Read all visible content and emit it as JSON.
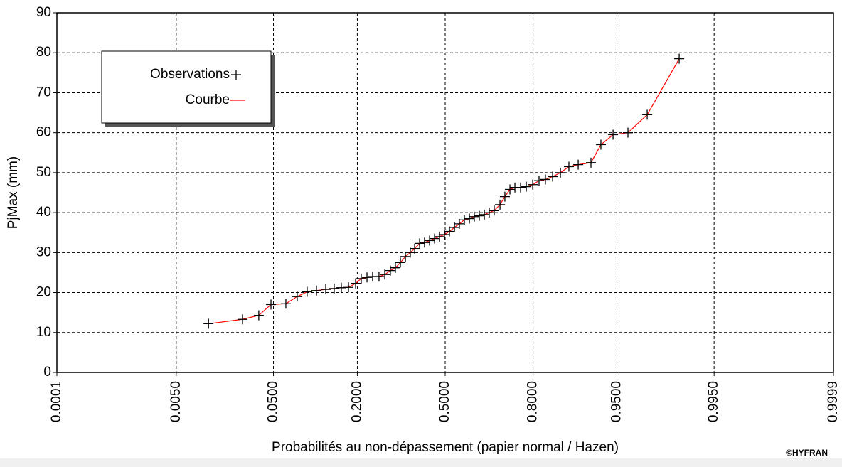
{
  "chart_data": {
    "type": "probability",
    "xscale": "normal",
    "xlabel": "Probabilités au non-dépassement (papier normal / Hazen)",
    "ylabel": "PjMax (mm)",
    "credit": "©HYFRAN",
    "xlim": [
      0.0001,
      0.9999
    ],
    "xticks": [
      {
        "value": 0.0001,
        "label": "0.0001"
      },
      {
        "value": 0.005,
        "label": "0.0050"
      },
      {
        "value": 0.05,
        "label": "0.0500"
      },
      {
        "value": 0.2,
        "label": "0.2000"
      },
      {
        "value": 0.5,
        "label": "0.5000"
      },
      {
        "value": 0.8,
        "label": "0.8000"
      },
      {
        "value": 0.95,
        "label": "0.9500"
      },
      {
        "value": 0.995,
        "label": "0.9950"
      },
      {
        "value": 0.9999,
        "label": "0.9999"
      }
    ],
    "ylim": [
      0,
      90
    ],
    "yticks": [
      0,
      10,
      20,
      30,
      40,
      50,
      60,
      70,
      80,
      90
    ],
    "grid": true,
    "x": [
      0.0117,
      0.0261,
      0.0371,
      0.0476,
      0.0635,
      0.0782,
      0.0931,
      0.1088,
      0.1263,
      0.1439,
      0.1599,
      0.1772,
      0.1954,
      0.2107,
      0.2269,
      0.2435,
      0.2631,
      0.2813,
      0.2998,
      0.3167,
      0.334,
      0.3516,
      0.3692,
      0.3848,
      0.4032,
      0.4215,
      0.4404,
      0.4594,
      0.4785,
      0.4972,
      0.5164,
      0.5355,
      0.5541,
      0.573,
      0.5917,
      0.6099,
      0.6282,
      0.6462,
      0.6635,
      0.6808,
      0.7002,
      0.7163,
      0.7324,
      0.7479,
      0.7649,
      0.7814,
      0.799,
      0.8157,
      0.8315,
      0.8482,
      0.8652,
      0.882,
      0.8987,
      0.9187,
      0.9321,
      0.9461,
      0.96,
      0.9735,
      0.9875
    ],
    "series": [
      {
        "name": "Observations",
        "color": "#000000",
        "marker": "+",
        "values": [
          12.2,
          13.3,
          14.3,
          17,
          17.2,
          19,
          20.2,
          20.5,
          20.8,
          21,
          21.2,
          21.3,
          22.3,
          23.5,
          23.8,
          24,
          24,
          24.5,
          25.5,
          26.2,
          27.5,
          29,
          30,
          31,
          32.3,
          32.5,
          33,
          33.5,
          34,
          34.5,
          35.3,
          36.3,
          37.2,
          38.2,
          38.5,
          39,
          39.2,
          39.5,
          40,
          40.5,
          42,
          44,
          45.8,
          46.3,
          46.3,
          46.5,
          47,
          48,
          48.3,
          49,
          50,
          51.5,
          52,
          52.5,
          57,
          59.5,
          60,
          64.5,
          78.5
        ]
      },
      {
        "name": "Courbe",
        "color": "#ff0000",
        "marker": "line",
        "values": [
          12.2,
          13.3,
          14.3,
          17,
          17.2,
          19,
          20.2,
          20.5,
          20.8,
          21,
          21.2,
          21.3,
          22.3,
          23.5,
          23.8,
          24,
          24,
          24.5,
          25.5,
          26.2,
          27.5,
          29,
          30,
          31,
          32.3,
          32.5,
          33,
          33.5,
          34,
          34.5,
          35.3,
          36.3,
          37.2,
          38.2,
          38.5,
          39,
          39.2,
          39.5,
          40,
          40.5,
          42,
          44,
          45.8,
          46.3,
          46.3,
          46.5,
          47,
          48,
          48.3,
          49,
          50,
          51.5,
          52,
          52.5,
          57,
          59.5,
          60,
          64.5,
          78.5
        ]
      }
    ]
  }
}
